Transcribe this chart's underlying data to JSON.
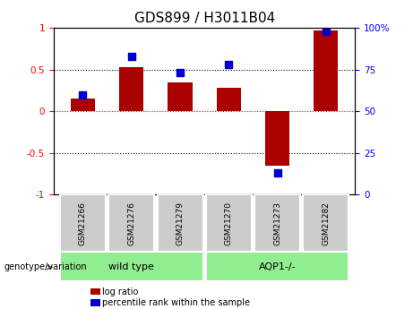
{
  "title": "GDS899 / H3011B04",
  "samples": [
    "GSM21266",
    "GSM21276",
    "GSM21279",
    "GSM21270",
    "GSM21273",
    "GSM21282"
  ],
  "log_ratios": [
    0.15,
    0.53,
    0.35,
    0.28,
    -0.65,
    0.97
  ],
  "percentile_ranks": [
    60,
    83,
    73,
    78,
    13,
    98
  ],
  "bar_color": "#aa0000",
  "dot_color": "#0000cc",
  "ylim": [
    -1,
    1
  ],
  "y_left_ticks": [
    -1,
    -0.5,
    0,
    0.5,
    1
  ],
  "y_right_ticks": [
    0,
    25,
    50,
    75,
    100
  ],
  "bar_width": 0.5,
  "dot_size": 40,
  "legend_items": [
    {
      "label": "log ratio",
      "color": "#aa0000"
    },
    {
      "label": "percentile rank within the sample",
      "color": "#0000cc"
    }
  ],
  "group_label": "genotype/variation",
  "wild_type_indices": [
    0,
    1,
    2
  ],
  "aqp_indices": [
    3,
    4,
    5
  ],
  "cell_color": "#cccccc",
  "group_color": "#90EE90",
  "title_fontsize": 11,
  "tick_fontsize": 7.5,
  "sample_fontsize": 6.5,
  "group_fontsize": 8,
  "legend_fontsize": 7
}
